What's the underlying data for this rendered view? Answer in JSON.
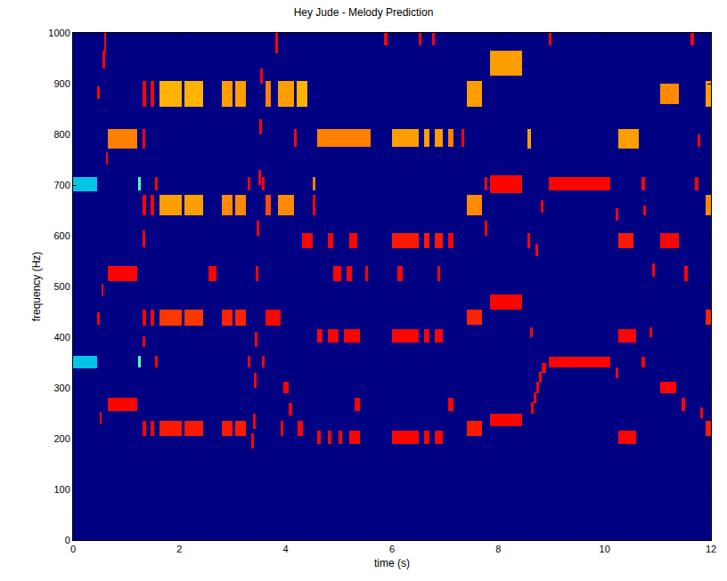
{
  "chart_data": {
    "type": "heatmap",
    "title": "Hey Jude - Melody Prediction",
    "x_label": "time (s)",
    "y_label": "frequency (Hz)",
    "xlim": [
      0,
      12
    ],
    "ylim": [
      0,
      1000
    ],
    "xticks": [
      0,
      2,
      4,
      6,
      8,
      10,
      12
    ],
    "yticks": [
      0,
      100,
      200,
      300,
      400,
      500,
      600,
      700,
      800,
      900,
      1000
    ],
    "zlim": [
      0,
      1
    ],
    "background": 0,
    "segments": [
      [
        0,
        0.45,
        688,
        716,
        0.3
      ],
      [
        0,
        0.45,
        338,
        364,
        0.3
      ],
      [
        0.45,
        0.5,
        425,
        450,
        0.87
      ],
      [
        0.46,
        0.5,
        870,
        895,
        0.87
      ],
      [
        0.5,
        0.54,
        228,
        252,
        0.87
      ],
      [
        0.53,
        0.57,
        480,
        505,
        0.87
      ],
      [
        0.56,
        0.6,
        930,
        965,
        0.87
      ],
      [
        0.58,
        0.62,
        960,
        1000,
        0.87
      ],
      [
        0.62,
        0.66,
        740,
        765,
        0.87
      ],
      [
        0.65,
        1.2,
        772,
        810,
        0.75
      ],
      [
        0.65,
        1.2,
        510,
        540,
        0.87
      ],
      [
        0.65,
        1.2,
        255,
        280,
        0.87
      ],
      [
        1.22,
        1.28,
        690,
        716,
        0.45
      ],
      [
        1.22,
        1.28,
        340,
        364,
        0.45
      ],
      [
        1.3,
        1.37,
        855,
        905,
        0.87
      ],
      [
        1.3,
        1.37,
        640,
        680,
        0.87
      ],
      [
        1.3,
        1.37,
        422,
        455,
        0.87
      ],
      [
        1.3,
        1.37,
        205,
        235,
        0.87
      ],
      [
        1.3,
        1.35,
        772,
        810,
        0.87
      ],
      [
        1.3,
        1.35,
        578,
        610,
        0.87
      ],
      [
        1.3,
        1.35,
        380,
        402,
        0.87
      ],
      [
        1.45,
        1.53,
        855,
        905,
        0.87
      ],
      [
        1.45,
        1.53,
        640,
        680,
        0.87
      ],
      [
        1.45,
        1.53,
        422,
        455,
        0.87
      ],
      [
        1.45,
        1.53,
        205,
        235,
        0.87
      ],
      [
        1.55,
        1.6,
        690,
        716,
        0.87
      ],
      [
        1.55,
        1.6,
        340,
        364,
        0.87
      ],
      [
        1.62,
        2.05,
        855,
        905,
        0.7
      ],
      [
        1.62,
        2.05,
        640,
        680,
        0.72
      ],
      [
        1.62,
        2.05,
        422,
        455,
        0.82
      ],
      [
        1.62,
        2.05,
        205,
        235,
        0.85
      ],
      [
        2.1,
        2.45,
        855,
        905,
        0.7
      ],
      [
        2.1,
        2.45,
        640,
        680,
        0.72
      ],
      [
        2.1,
        2.45,
        422,
        455,
        0.82
      ],
      [
        2.1,
        2.45,
        205,
        235,
        0.85
      ],
      [
        2.55,
        2.7,
        510,
        540,
        0.87
      ],
      [
        2.8,
        3.0,
        855,
        905,
        0.72
      ],
      [
        2.8,
        3.0,
        640,
        680,
        0.74
      ],
      [
        2.8,
        3.0,
        422,
        455,
        0.84
      ],
      [
        2.8,
        3.0,
        205,
        235,
        0.85
      ],
      [
        3.05,
        3.25,
        855,
        905,
        0.72
      ],
      [
        3.05,
        3.25,
        640,
        680,
        0.74
      ],
      [
        3.05,
        3.25,
        422,
        455,
        0.84
      ],
      [
        3.05,
        3.25,
        205,
        235,
        0.85
      ],
      [
        3.28,
        3.33,
        690,
        716,
        0.87
      ],
      [
        3.28,
        3.33,
        340,
        364,
        0.87
      ],
      [
        3.35,
        3.4,
        180,
        210,
        0.87
      ],
      [
        3.38,
        3.43,
        220,
        250,
        0.87
      ],
      [
        3.4,
        3.45,
        300,
        330,
        0.87
      ],
      [
        3.42,
        3.47,
        380,
        410,
        0.87
      ],
      [
        3.44,
        3.49,
        510,
        540,
        0.87
      ],
      [
        3.46,
        3.51,
        600,
        630,
        0.87
      ],
      [
        3.48,
        3.53,
        700,
        730,
        0.87
      ],
      [
        3.5,
        3.55,
        800,
        830,
        0.87
      ],
      [
        3.52,
        3.57,
        900,
        930,
        0.87
      ],
      [
        3.55,
        3.6,
        340,
        364,
        0.87
      ],
      [
        3.55,
        3.6,
        690,
        716,
        0.87
      ],
      [
        3.62,
        3.72,
        855,
        905,
        0.75
      ],
      [
        3.62,
        3.72,
        640,
        680,
        0.8
      ],
      [
        3.62,
        3.72,
        422,
        455,
        0.87
      ],
      [
        3.7,
        3.9,
        422,
        455,
        0.87
      ],
      [
        3.8,
        3.85,
        960,
        1000,
        0.87
      ],
      [
        3.85,
        4.15,
        855,
        905,
        0.72
      ],
      [
        3.85,
        4.15,
        640,
        680,
        0.74
      ],
      [
        3.9,
        3.96,
        205,
        235,
        0.87
      ],
      [
        3.95,
        4.05,
        290,
        312,
        0.87
      ],
      [
        4.05,
        4.12,
        245,
        270,
        0.87
      ],
      [
        4.15,
        4.2,
        775,
        810,
        0.87
      ],
      [
        4.2,
        4.4,
        855,
        905,
        0.7
      ],
      [
        4.22,
        4.32,
        205,
        235,
        0.87
      ],
      [
        4.3,
        4.5,
        575,
        605,
        0.87
      ],
      [
        4.5,
        4.56,
        690,
        716,
        0.75
      ],
      [
        4.5,
        4.56,
        640,
        680,
        0.87
      ],
      [
        4.6,
        5.6,
        775,
        810,
        0.75
      ],
      [
        4.6,
        4.7,
        390,
        415,
        0.87
      ],
      [
        4.8,
        5.0,
        390,
        415,
        0.87
      ],
      [
        5.1,
        5.4,
        390,
        415,
        0.87
      ],
      [
        4.6,
        4.66,
        190,
        215,
        0.87
      ],
      [
        4.8,
        4.86,
        190,
        215,
        0.87
      ],
      [
        5.0,
        5.06,
        190,
        215,
        0.87
      ],
      [
        5.2,
        5.4,
        190,
        215,
        0.87
      ],
      [
        4.8,
        4.9,
        575,
        605,
        0.87
      ],
      [
        5.2,
        5.35,
        575,
        605,
        0.87
      ],
      [
        4.9,
        5.05,
        510,
        540,
        0.87
      ],
      [
        5.15,
        5.25,
        510,
        540,
        0.87
      ],
      [
        5.3,
        5.4,
        255,
        280,
        0.87
      ],
      [
        5.5,
        5.55,
        510,
        540,
        0.87
      ],
      [
        5.85,
        5.92,
        975,
        1000,
        0.87
      ],
      [
        6.0,
        6.5,
        775,
        810,
        0.72
      ],
      [
        6.0,
        6.5,
        575,
        605,
        0.85
      ],
      [
        6.0,
        6.5,
        390,
        415,
        0.87
      ],
      [
        6.0,
        6.5,
        190,
        215,
        0.87
      ],
      [
        6.1,
        6.2,
        510,
        540,
        0.87
      ],
      [
        6.6,
        6.7,
        775,
        810,
        0.72
      ],
      [
        6.6,
        6.7,
        575,
        605,
        0.85
      ],
      [
        6.6,
        6.7,
        390,
        415,
        0.87
      ],
      [
        6.6,
        6.7,
        190,
        215,
        0.87
      ],
      [
        6.5,
        6.56,
        975,
        1000,
        0.87
      ],
      [
        6.8,
        6.95,
        775,
        810,
        0.72
      ],
      [
        6.8,
        6.95,
        575,
        605,
        0.85
      ],
      [
        6.8,
        6.95,
        390,
        415,
        0.87
      ],
      [
        6.8,
        6.95,
        190,
        215,
        0.87
      ],
      [
        6.75,
        6.8,
        975,
        1000,
        0.87
      ],
      [
        6.85,
        6.9,
        510,
        540,
        0.87
      ],
      [
        7.05,
        7.15,
        775,
        810,
        0.75
      ],
      [
        7.05,
        7.15,
        575,
        605,
        0.87
      ],
      [
        7.05,
        7.15,
        255,
        280,
        0.87
      ],
      [
        7.3,
        7.35,
        775,
        810,
        0.87
      ],
      [
        7.4,
        7.7,
        855,
        905,
        0.72
      ],
      [
        7.4,
        7.7,
        640,
        680,
        0.74
      ],
      [
        7.4,
        7.7,
        425,
        455,
        0.84
      ],
      [
        7.4,
        7.7,
        205,
        235,
        0.85
      ],
      [
        7.75,
        7.8,
        690,
        716,
        0.87
      ],
      [
        7.75,
        7.8,
        600,
        630,
        0.87
      ],
      [
        7.85,
        8.45,
        915,
        965,
        0.72
      ],
      [
        7.85,
        8.45,
        685,
        720,
        0.87
      ],
      [
        7.85,
        8.45,
        455,
        485,
        0.87
      ],
      [
        7.85,
        8.45,
        225,
        250,
        0.87
      ],
      [
        8.55,
        8.62,
        772,
        810,
        0.72
      ],
      [
        8.55,
        8.6,
        575,
        605,
        0.87
      ],
      [
        8.62,
        8.67,
        250,
        272,
        0.87
      ],
      [
        8.67,
        8.72,
        270,
        292,
        0.87
      ],
      [
        8.72,
        8.77,
        290,
        312,
        0.87
      ],
      [
        8.77,
        8.82,
        310,
        332,
        0.87
      ],
      [
        8.82,
        8.9,
        330,
        350,
        0.87
      ],
      [
        8.6,
        8.65,
        400,
        420,
        0.87
      ],
      [
        8.7,
        8.75,
        560,
        585,
        0.87
      ],
      [
        8.8,
        8.85,
        645,
        670,
        0.87
      ],
      [
        8.95,
        9.0,
        975,
        1000,
        0.87
      ],
      [
        8.95,
        10.1,
        690,
        716,
        0.87
      ],
      [
        8.95,
        10.1,
        340,
        362,
        0.87
      ],
      [
        10.2,
        10.25,
        630,
        655,
        0.87
      ],
      [
        10.2,
        10.25,
        320,
        340,
        0.87
      ],
      [
        10.25,
        10.65,
        772,
        810,
        0.72
      ],
      [
        10.25,
        10.55,
        575,
        605,
        0.85
      ],
      [
        10.25,
        10.6,
        390,
        415,
        0.87
      ],
      [
        10.25,
        10.6,
        190,
        215,
        0.87
      ],
      [
        10.7,
        10.76,
        690,
        716,
        0.87
      ],
      [
        10.7,
        10.76,
        340,
        362,
        0.87
      ],
      [
        10.72,
        10.77,
        640,
        660,
        0.87
      ],
      [
        10.85,
        10.9,
        400,
        420,
        0.87
      ],
      [
        10.9,
        10.95,
        520,
        545,
        0.87
      ],
      [
        11.05,
        11.4,
        860,
        900,
        0.74
      ],
      [
        11.05,
        11.4,
        575,
        605,
        0.87
      ],
      [
        11.05,
        11.35,
        290,
        312,
        0.87
      ],
      [
        11.45,
        11.52,
        255,
        280,
        0.87
      ],
      [
        11.5,
        11.56,
        510,
        540,
        0.87
      ],
      [
        11.62,
        11.68,
        975,
        1000,
        0.87
      ],
      [
        11.7,
        11.76,
        690,
        716,
        0.87
      ],
      [
        11.75,
        11.8,
        775,
        800,
        0.87
      ],
      [
        11.8,
        11.85,
        240,
        262,
        0.87
      ],
      [
        11.9,
        12,
        855,
        905,
        0.72
      ],
      [
        11.9,
        12,
        640,
        680,
        0.74
      ],
      [
        11.9,
        12,
        425,
        455,
        0.84
      ],
      [
        11.9,
        12,
        205,
        235,
        0.85
      ]
    ]
  }
}
